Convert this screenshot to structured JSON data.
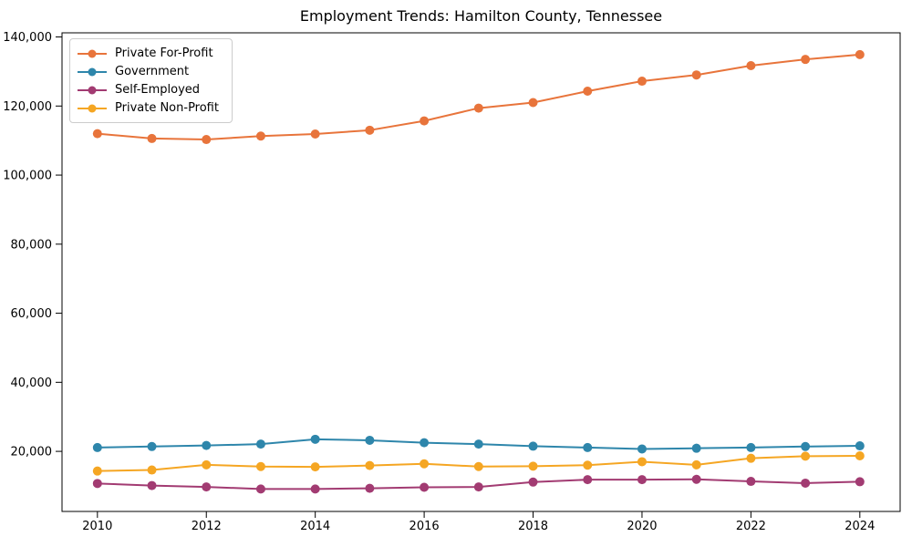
{
  "chart_data": {
    "type": "line",
    "title": "Employment Trends: Hamilton County, Tennessee",
    "xlabel": "",
    "ylabel": "",
    "x": [
      2010,
      2011,
      2012,
      2013,
      2014,
      2015,
      2016,
      2017,
      2018,
      2019,
      2020,
      2021,
      2022,
      2023,
      2024
    ],
    "series": [
      {
        "name": "Private For-Profit",
        "color": "#E8743B",
        "values": [
          112000,
          110600,
          110300,
          111300,
          111900,
          113000,
          115700,
          119400,
          121000,
          124300,
          127200,
          129000,
          131700,
          133500,
          134900
        ]
      },
      {
        "name": "Government",
        "color": "#2E86AB",
        "values": [
          21100,
          21400,
          21700,
          22100,
          23500,
          23200,
          22500,
          22100,
          21500,
          21100,
          20700,
          20900,
          21100,
          21400,
          21600
        ]
      },
      {
        "name": "Self-Employed",
        "color": "#A23B72",
        "values": [
          10700,
          10100,
          9700,
          9100,
          9100,
          9300,
          9600,
          9700,
          11100,
          11800,
          11800,
          11900,
          11300,
          10800,
          11200
        ]
      },
      {
        "name": "Private Non-Profit",
        "color": "#F5A623",
        "values": [
          14300,
          14600,
          16100,
          15600,
          15500,
          15900,
          16400,
          15600,
          15700,
          16000,
          17000,
          16100,
          18000,
          18600,
          18700
        ]
      }
    ],
    "xticks": [
      2010,
      2012,
      2014,
      2016,
      2018,
      2020,
      2022,
      2024
    ],
    "yticks": [
      20000,
      40000,
      60000,
      80000,
      100000,
      120000,
      140000
    ],
    "ytick_labels": [
      "20,000",
      "40,000",
      "60,000",
      "80,000",
      "100,000",
      "120,000",
      "140,000"
    ],
    "xlim": [
      2009.35,
      2024.74
    ],
    "ylim": [
      2600,
      141200
    ],
    "grid": false,
    "legend_position": "upper-left",
    "marker": "circle",
    "axis_color": "#000000"
  }
}
